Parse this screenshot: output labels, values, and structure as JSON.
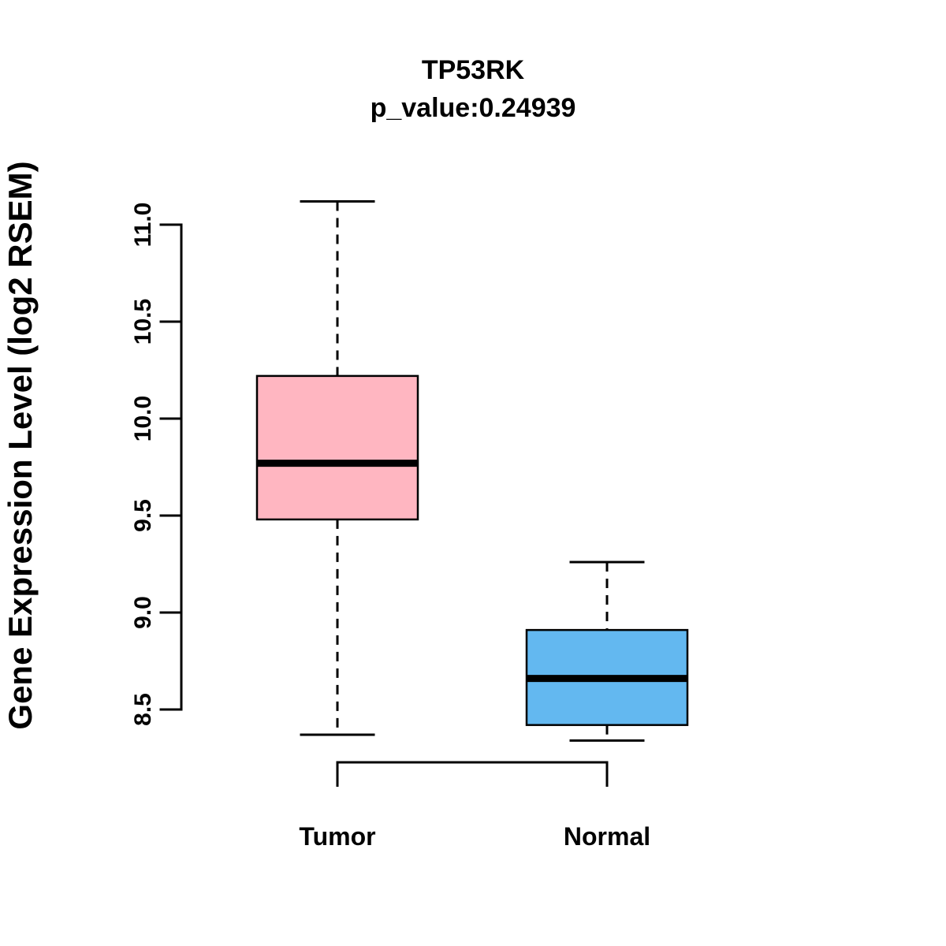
{
  "chart_data": {
    "type": "boxplot",
    "title": "TP53RK",
    "subtitle": "p_value:0.24939",
    "ylabel": "Gene Expression Level (log2 RSEM)",
    "ylim": [
      8.5,
      11.0
    ],
    "yticks": [
      8.5,
      9.0,
      9.5,
      10.0,
      10.5,
      11.0
    ],
    "grid": false,
    "legend": "none",
    "categories": [
      "Tumor",
      "Normal"
    ],
    "series": [
      {
        "name": "Tumor",
        "color": "#FFB6C1",
        "whisker_low": 8.37,
        "q1": 9.48,
        "median": 9.77,
        "q3": 10.22,
        "whisker_high": 11.12
      },
      {
        "name": "Normal",
        "color": "#63B8F0",
        "whisker_low": 8.34,
        "q1": 8.42,
        "median": 8.66,
        "q3": 8.91,
        "whisker_high": 9.26
      }
    ],
    "comparison_bracket": true
  }
}
